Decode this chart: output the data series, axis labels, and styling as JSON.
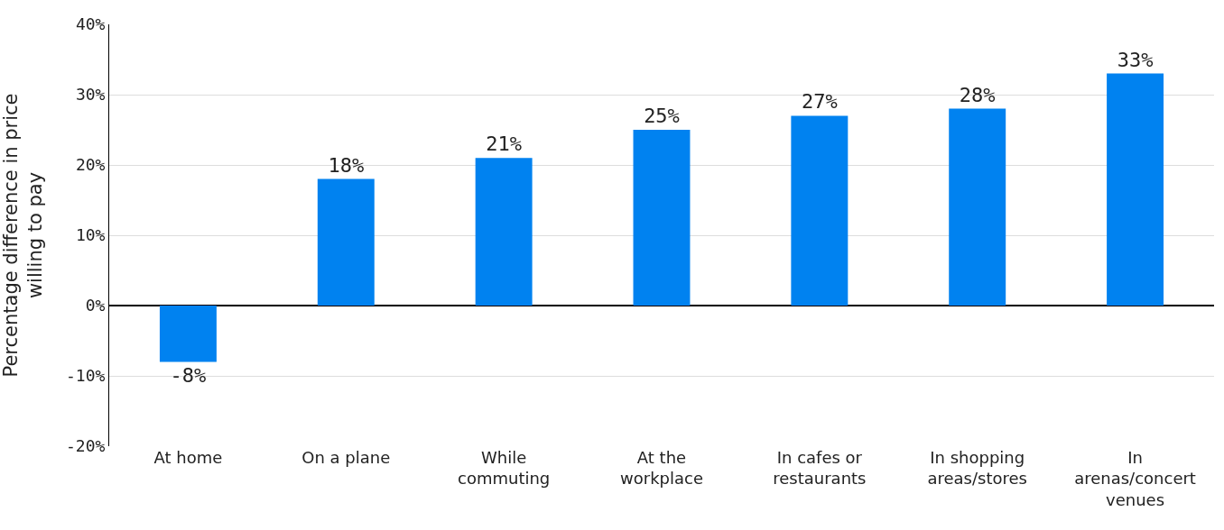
{
  "chart_data": {
    "type": "bar",
    "ylabel": "Percentage difference in price willing to pay",
    "categories": [
      "At home",
      "On a plane",
      "While commuting",
      "At the workplace",
      "In cafes or restaurants",
      "In shopping areas/stores",
      "In arenas/concert venues"
    ],
    "values": [
      -8,
      18,
      21,
      25,
      27,
      28,
      33
    ],
    "value_labels": [
      "-8%",
      "18%",
      "21%",
      "25%",
      "27%",
      "28%",
      "33%"
    ],
    "color": "#0082f0",
    "ylim": [
      -20,
      40
    ],
    "yticks": [
      {
        "value": -20,
        "label": "-20%"
      },
      {
        "value": -10,
        "label": "-10%"
      },
      {
        "value": 0,
        "label": "0%"
      },
      {
        "value": 10,
        "label": "10%"
      },
      {
        "value": 20,
        "label": "20%"
      },
      {
        "value": 30,
        "label": "30%"
      },
      {
        "value": 40,
        "label": "40%"
      }
    ],
    "grid": "y",
    "legend": false
  }
}
